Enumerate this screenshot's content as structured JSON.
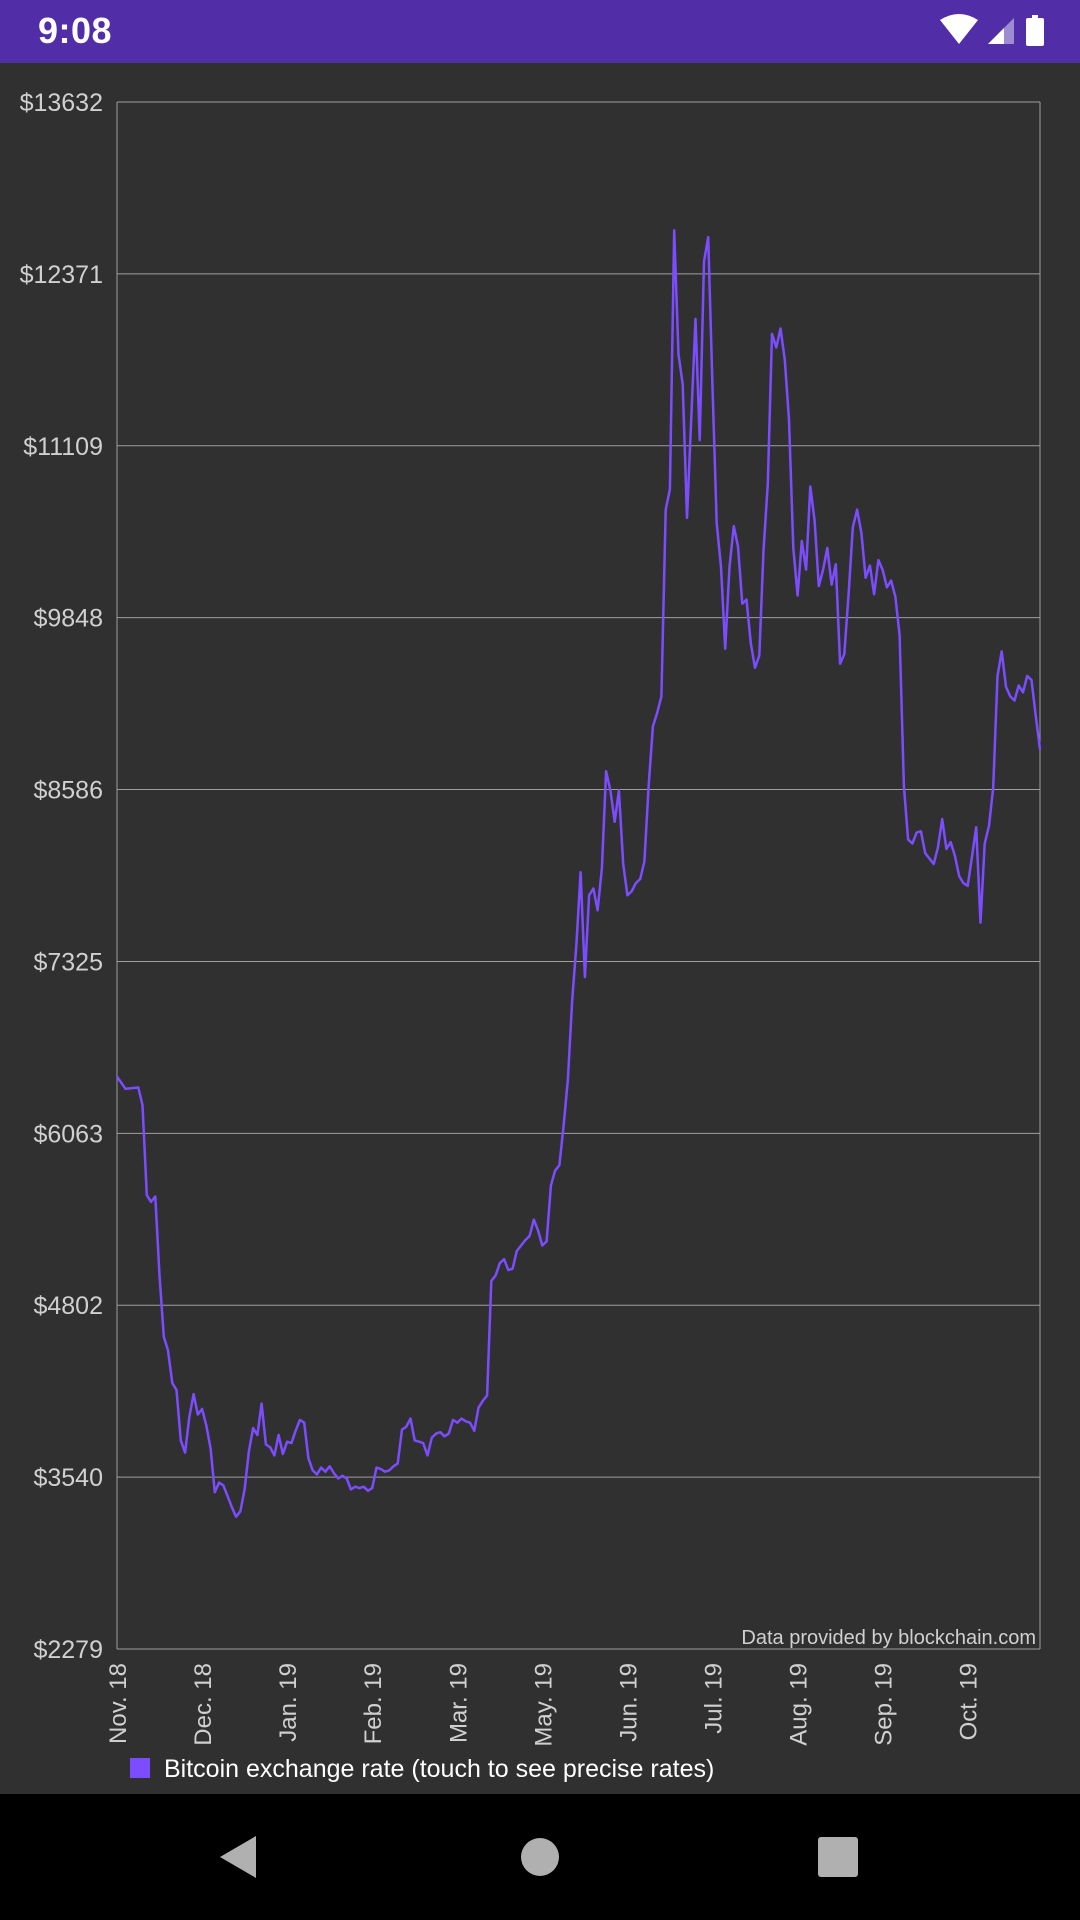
{
  "status_bar": {
    "time": "9:08",
    "icons": [
      "wifi-icon",
      "cell-signal-icon",
      "battery-icon"
    ],
    "color": "#512DA8"
  },
  "chart_data": {
    "type": "line",
    "title": "",
    "xlabel": "",
    "ylabel": "",
    "ylim": [
      2279,
      13632
    ],
    "y_ticks": [
      "$13632",
      "$12371",
      "$11109",
      "$9848",
      "$8586",
      "$7325",
      "$6063",
      "$4802",
      "$3540",
      "$2279"
    ],
    "x_ticks": [
      "Nov. 18",
      "Dec. 18",
      "Jan. 19",
      "Feb. 19",
      "Mar. 19",
      "May. 19",
      "Jun. 19",
      "Jul. 19",
      "Aug. 19",
      "Sep. 19",
      "Oct. 19"
    ],
    "grid": true,
    "series": [
      {
        "name": "Bitcoin exchange rate (touch to see precise rates)",
        "color": "#7C4DFF",
        "points": [
          [
            0,
            6480
          ],
          [
            2,
            6390
          ],
          [
            5,
            6400
          ],
          [
            6,
            6270
          ],
          [
            7,
            5610
          ],
          [
            8,
            5560
          ],
          [
            9,
            5600
          ],
          [
            10,
            5020
          ],
          [
            11,
            4570
          ],
          [
            12,
            4470
          ],
          [
            13,
            4230
          ],
          [
            14,
            4180
          ],
          [
            15,
            3810
          ],
          [
            16,
            3720
          ],
          [
            17,
            3980
          ],
          [
            18,
            4150
          ],
          [
            19,
            4000
          ],
          [
            20,
            4040
          ],
          [
            21,
            3920
          ],
          [
            22,
            3750
          ],
          [
            23,
            3430
          ],
          [
            24,
            3500
          ],
          [
            25,
            3480
          ],
          [
            26,
            3400
          ],
          [
            27,
            3320
          ],
          [
            28,
            3250
          ],
          [
            29,
            3290
          ],
          [
            30,
            3450
          ],
          [
            31,
            3730
          ],
          [
            32,
            3900
          ],
          [
            33,
            3850
          ],
          [
            34,
            4080
          ],
          [
            35,
            3780
          ],
          [
            36,
            3760
          ],
          [
            37,
            3700
          ],
          [
            38,
            3850
          ],
          [
            39,
            3710
          ],
          [
            40,
            3800
          ],
          [
            41,
            3790
          ],
          [
            42,
            3880
          ],
          [
            43,
            3960
          ],
          [
            44,
            3940
          ],
          [
            45,
            3680
          ],
          [
            46,
            3590
          ],
          [
            47,
            3560
          ],
          [
            48,
            3610
          ],
          [
            49,
            3580
          ],
          [
            50,
            3620
          ],
          [
            51,
            3570
          ],
          [
            52,
            3530
          ],
          [
            53,
            3550
          ],
          [
            54,
            3530
          ],
          [
            55,
            3450
          ],
          [
            56,
            3470
          ],
          [
            57,
            3460
          ],
          [
            58,
            3470
          ],
          [
            59,
            3440
          ],
          [
            60,
            3460
          ],
          [
            61,
            3610
          ],
          [
            62,
            3600
          ],
          [
            63,
            3580
          ],
          [
            64,
            3590
          ],
          [
            65,
            3620
          ],
          [
            66,
            3640
          ],
          [
            67,
            3890
          ],
          [
            68,
            3910
          ],
          [
            69,
            3970
          ],
          [
            70,
            3810
          ],
          [
            71,
            3800
          ],
          [
            72,
            3790
          ],
          [
            73,
            3700
          ],
          [
            74,
            3830
          ],
          [
            75,
            3860
          ],
          [
            76,
            3870
          ],
          [
            77,
            3840
          ],
          [
            78,
            3860
          ],
          [
            79,
            3960
          ],
          [
            80,
            3940
          ],
          [
            81,
            3970
          ],
          [
            82,
            3950
          ],
          [
            83,
            3940
          ],
          [
            84,
            3880
          ],
          [
            85,
            4050
          ],
          [
            86,
            4100
          ],
          [
            87,
            4140
          ],
          [
            88,
            4980
          ],
          [
            89,
            5020
          ],
          [
            90,
            5110
          ],
          [
            91,
            5140
          ],
          [
            92,
            5060
          ],
          [
            93,
            5070
          ],
          [
            94,
            5200
          ],
          [
            95,
            5240
          ],
          [
            96,
            5280
          ],
          [
            97,
            5310
          ],
          [
            98,
            5430
          ],
          [
            99,
            5350
          ],
          [
            100,
            5240
          ],
          [
            101,
            5270
          ],
          [
            102,
            5680
          ],
          [
            103,
            5790
          ],
          [
            104,
            5830
          ],
          [
            105,
            6120
          ],
          [
            106,
            6460
          ],
          [
            107,
            7030
          ],
          [
            108,
            7450
          ],
          [
            109,
            7980
          ],
          [
            110,
            7210
          ],
          [
            111,
            7810
          ],
          [
            112,
            7860
          ],
          [
            113,
            7700
          ],
          [
            114,
            8010
          ],
          [
            115,
            8720
          ],
          [
            116,
            8580
          ],
          [
            117,
            8350
          ],
          [
            118,
            8580
          ],
          [
            119,
            8040
          ],
          [
            120,
            7810
          ],
          [
            121,
            7840
          ],
          [
            122,
            7900
          ],
          [
            123,
            7930
          ],
          [
            124,
            8060
          ],
          [
            125,
            8620
          ],
          [
            126,
            9050
          ],
          [
            127,
            9150
          ],
          [
            128,
            9270
          ],
          [
            129,
            10640
          ],
          [
            130,
            10790
          ],
          [
            131,
            12690
          ],
          [
            132,
            11780
          ],
          [
            133,
            11560
          ],
          [
            134,
            10580
          ],
          [
            135,
            11300
          ],
          [
            136,
            12040
          ],
          [
            137,
            11150
          ],
          [
            138,
            12460
          ],
          [
            139,
            12640
          ],
          [
            140,
            11540
          ],
          [
            141,
            10540
          ],
          [
            142,
            10220
          ],
          [
            143,
            9620
          ],
          [
            144,
            10220
          ],
          [
            145,
            10520
          ],
          [
            146,
            10370
          ],
          [
            147,
            9950
          ],
          [
            148,
            9980
          ],
          [
            149,
            9660
          ],
          [
            150,
            9480
          ],
          [
            151,
            9570
          ],
          [
            152,
            10340
          ],
          [
            153,
            10830
          ],
          [
            154,
            11930
          ],
          [
            155,
            11830
          ],
          [
            156,
            11970
          ],
          [
            157,
            11740
          ],
          [
            158,
            11300
          ],
          [
            159,
            10360
          ],
          [
            160,
            10010
          ],
          [
            161,
            10410
          ],
          [
            162,
            10200
          ],
          [
            163,
            10810
          ],
          [
            164,
            10560
          ],
          [
            165,
            10080
          ],
          [
            166,
            10200
          ],
          [
            167,
            10360
          ],
          [
            168,
            10090
          ],
          [
            169,
            10240
          ],
          [
            170,
            9510
          ],
          [
            171,
            9580
          ],
          [
            172,
            10020
          ],
          [
            173,
            10510
          ],
          [
            174,
            10640
          ],
          [
            175,
            10470
          ],
          [
            176,
            10140
          ],
          [
            177,
            10230
          ],
          [
            178,
            10020
          ],
          [
            179,
            10270
          ],
          [
            180,
            10200
          ],
          [
            181,
            10070
          ],
          [
            182,
            10120
          ],
          [
            183,
            10000
          ],
          [
            184,
            9720
          ],
          [
            185,
            8610
          ],
          [
            186,
            8220
          ],
          [
            187,
            8190
          ],
          [
            188,
            8270
          ],
          [
            189,
            8280
          ],
          [
            190,
            8120
          ],
          [
            191,
            8080
          ],
          [
            192,
            8040
          ],
          [
            193,
            8160
          ],
          [
            194,
            8370
          ],
          [
            195,
            8150
          ],
          [
            196,
            8200
          ],
          [
            197,
            8100
          ],
          [
            198,
            7950
          ],
          [
            199,
            7900
          ],
          [
            200,
            7880
          ],
          [
            201,
            8090
          ],
          [
            202,
            8310
          ],
          [
            203,
            7610
          ],
          [
            204,
            8190
          ],
          [
            205,
            8320
          ],
          [
            206,
            8600
          ],
          [
            207,
            9420
          ],
          [
            208,
            9600
          ],
          [
            209,
            9340
          ],
          [
            210,
            9270
          ],
          [
            211,
            9240
          ],
          [
            212,
            9350
          ],
          [
            213,
            9300
          ],
          [
            214,
            9420
          ],
          [
            215,
            9390
          ],
          [
            216,
            9130
          ],
          [
            217,
            8880
          ]
        ]
      }
    ],
    "x_index_max": 217,
    "x_tick_positions": [
      0,
      20,
      40,
      60,
      80,
      100,
      120,
      140,
      160,
      180,
      200
    ],
    "annotation": "Data provided by blockchain.com",
    "legend_position": "bottom-left",
    "colors": {
      "background": "#303030",
      "grid": "#9E9E9E",
      "text": "#D0D0D0",
      "line": "#7C4DFF"
    }
  },
  "nav_bar": {
    "buttons": [
      "back-icon",
      "home-icon",
      "recents-icon"
    ]
  }
}
